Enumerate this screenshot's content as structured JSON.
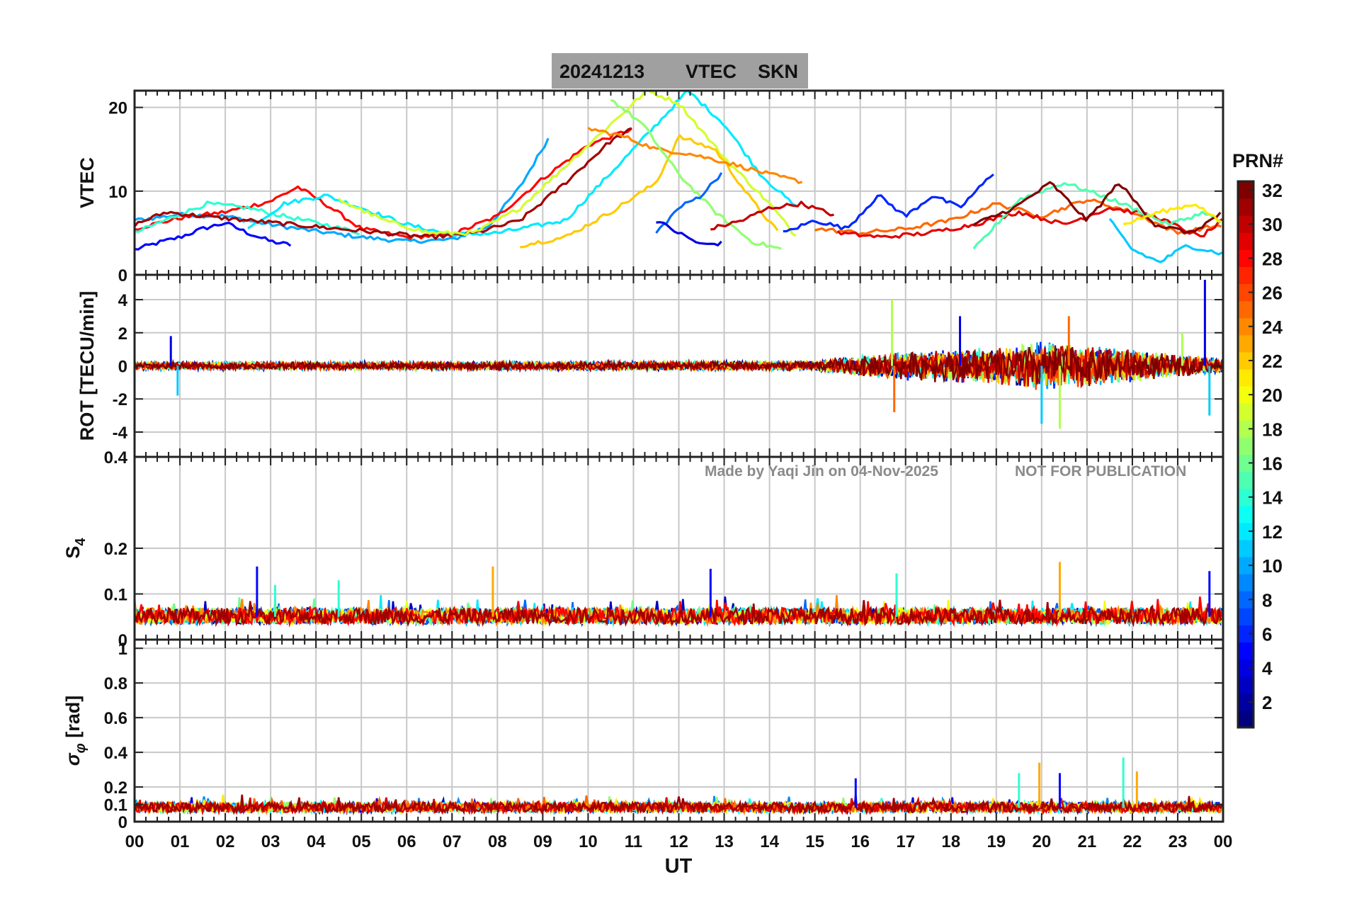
{
  "title": {
    "date": "20241213",
    "quantity": "VTEC",
    "station": "SKN"
  },
  "watermark": {
    "author": "Made by Yaqi Jin on 04-Nov-2025",
    "notice": "NOT FOR PUBLICATION"
  },
  "colorbar": {
    "label": "PRN#",
    "ticks": [
      "2",
      "4",
      "6",
      "8",
      "10",
      "12",
      "14",
      "16",
      "18",
      "20",
      "22",
      "24",
      "26",
      "28",
      "30",
      "32"
    ],
    "min": 1,
    "max": 32,
    "colormap": "jet"
  },
  "colors": {
    "title_box": "#a0a0a0",
    "grid": "#c8c8c8",
    "axes": "#222222",
    "watermark": "#8a8a8a"
  },
  "chart_data": [
    {
      "type": "line",
      "panel": "vtec",
      "ylabel": "VTEC",
      "ylim": [
        0,
        22
      ],
      "yticks": [
        "0",
        "10",
        "20"
      ],
      "yticks_values": [
        0,
        10,
        20
      ],
      "xlim": [
        0,
        24
      ],
      "grid": true,
      "series": [
        {
          "prn": 5,
          "x": [
            0,
            0.5,
            1,
            1.5,
            2,
            2.5,
            3,
            3.5
          ],
          "y": [
            3.0,
            3.8,
            4.5,
            5.5,
            6.2,
            5.0,
            4.0,
            3.5
          ]
        },
        {
          "prn": 10,
          "x": [
            0,
            1,
            2,
            3,
            4,
            5,
            6,
            7,
            7.8,
            8.5,
            9.2
          ],
          "y": [
            6.5,
            7.2,
            7.0,
            6.0,
            5.2,
            4.5,
            4.0,
            4.2,
            5.8,
            10.5,
            17.0
          ]
        },
        {
          "prn": 28,
          "x": [
            0,
            1,
            2,
            3,
            3.6,
            4.2,
            5,
            6,
            7,
            8,
            9,
            10,
            11
          ],
          "y": [
            5.5,
            6.8,
            7.5,
            8.8,
            10.5,
            8.5,
            5.5,
            4.5,
            4.8,
            7.0,
            11.5,
            15.5,
            17.5
          ]
        },
        {
          "prn": 14,
          "x": [
            0,
            0.8,
            1.6,
            2.5,
            3.3,
            4.2,
            5
          ],
          "y": [
            5.0,
            6.8,
            8.5,
            8.0,
            7.0,
            6.0,
            5.0
          ]
        },
        {
          "prn": 12,
          "x": [
            2.5,
            3.3,
            4.2,
            5,
            6,
            7,
            8,
            9.5,
            11,
            12.2,
            13,
            13.8,
            14.6
          ],
          "y": [
            5.5,
            8.5,
            9.5,
            8.0,
            6.0,
            4.8,
            5.0,
            6.5,
            15.0,
            22.0,
            18.0,
            12.0,
            8.0
          ]
        },
        {
          "prn": 31,
          "x": [
            0,
            0.7,
            1.5,
            2.5,
            3.5,
            4.5,
            5.5,
            6.5,
            7.5,
            8.5,
            9.5,
            10.5,
            11
          ],
          "y": [
            6.0,
            7.5,
            7.0,
            6.5,
            6.0,
            5.5,
            5.0,
            4.5,
            5.0,
            6.5,
            11.0,
            16.0,
            17.5
          ]
        },
        {
          "prn": 19,
          "x": [
            4.5,
            5.5,
            6.5,
            7.5,
            8.5,
            9.5,
            10.5,
            11.3,
            12,
            13,
            14,
            14.6
          ],
          "y": [
            9.0,
            6.5,
            5.0,
            5.0,
            8.0,
            13.0,
            18.0,
            22.0,
            20.5,
            14.0,
            8.5,
            4.5
          ]
        },
        {
          "prn": 22,
          "x": [
            8.5,
            9.5,
            10.5,
            11.5,
            12,
            12.8,
            13.6,
            14.2
          ],
          "y": [
            3.5,
            4.5,
            7.5,
            11.0,
            16.5,
            15.0,
            9.0,
            5.0
          ]
        },
        {
          "prn": 24,
          "x": [
            10,
            10.8,
            11.5,
            12.2,
            13,
            14,
            14.8
          ],
          "y": [
            17.5,
            16.5,
            15.0,
            14.5,
            13.5,
            12.0,
            11.0
          ]
        },
        {
          "prn": 17,
          "x": [
            10.5,
            11.2,
            12,
            12.8,
            13.6,
            14.3
          ],
          "y": [
            21.0,
            18.0,
            12.0,
            7.5,
            4.0,
            3.0
          ]
        },
        {
          "prn": 8,
          "x": [
            11.5,
            12,
            12.5,
            13
          ],
          "y": [
            5.0,
            8.0,
            9.5,
            12.5
          ]
        },
        {
          "prn": 4,
          "x": [
            11.5,
            12,
            12.5,
            13
          ],
          "y": [
            6.5,
            5.0,
            3.6,
            3.8
          ]
        },
        {
          "prn": 30,
          "x": [
            12.7,
            13.4,
            14,
            14.7,
            15.5
          ],
          "y": [
            5.5,
            6.5,
            8.0,
            8.5,
            7.0
          ]
        },
        {
          "prn": 6,
          "x": [
            14.3,
            15,
            15.7,
            16.4,
            17,
            17.6,
            18.2,
            19
          ],
          "y": [
            5.0,
            6.5,
            5.5,
            9.5,
            7.0,
            9.5,
            8.0,
            12.5
          ]
        },
        {
          "prn": 25,
          "x": [
            15,
            16,
            17,
            18,
            19,
            20,
            21,
            22,
            23,
            24
          ],
          "y": [
            5.5,
            5.0,
            5.5,
            6.5,
            8.5,
            7.0,
            9.0,
            7.5,
            5.0,
            6.0
          ]
        },
        {
          "prn": 29,
          "x": [
            15.5,
            16.5,
            17.5,
            18.5,
            19.5,
            20.5,
            21.5,
            22.5,
            23.5,
            24
          ],
          "y": [
            5.0,
            4.5,
            5.0,
            6.0,
            7.5,
            6.0,
            8.0,
            7.0,
            4.5,
            6.5
          ]
        },
        {
          "prn": 15,
          "x": [
            18.5,
            19.5,
            20.5,
            21.3,
            22,
            22.8,
            23.6,
            24
          ],
          "y": [
            3.0,
            9.0,
            11.0,
            9.5,
            8.0,
            6.0,
            7.5,
            6.0
          ]
        },
        {
          "prn": 32,
          "x": [
            18.5,
            19.4,
            20.2,
            21,
            21.7,
            22.5,
            23.3,
            24
          ],
          "y": [
            6.0,
            8.0,
            11.0,
            6.5,
            11.0,
            6.0,
            5.0,
            7.5
          ]
        },
        {
          "prn": 11,
          "x": [
            21.5,
            22,
            22.6,
            23.2,
            24
          ],
          "y": [
            6.5,
            3.0,
            1.5,
            3.5,
            2.5
          ]
        },
        {
          "prn": 21,
          "x": [
            21.8,
            22.6,
            23.4,
            24
          ],
          "y": [
            6.0,
            7.5,
            8.5,
            6.0
          ]
        }
      ]
    },
    {
      "type": "line",
      "panel": "rot",
      "ylabel": "ROT [TECU/min]",
      "ylim": [
        -5.5,
        5.5
      ],
      "yticks": [
        "-4",
        "-2",
        "0",
        "2",
        "4"
      ],
      "yticks_values": [
        -4,
        -2,
        0,
        2,
        4
      ],
      "xlim": [
        0,
        24
      ],
      "grid": true,
      "noise_profile": {
        "x": [
          0,
          15,
          16,
          17,
          18,
          19,
          20,
          21,
          22,
          23,
          24
        ],
        "amplitude": [
          0.4,
          0.5,
          1.2,
          1.5,
          1.8,
          2.0,
          2.6,
          2.2,
          1.8,
          1.2,
          0.8
        ]
      },
      "spikes": [
        {
          "x": 0.8,
          "y": 1.8
        },
        {
          "x": 0.95,
          "y": -1.8
        },
        {
          "x": 16.7,
          "y": 4.0
        },
        {
          "x": 16.75,
          "y": -2.8
        },
        {
          "x": 18.2,
          "y": 3.0
        },
        {
          "x": 20.0,
          "y": -3.5
        },
        {
          "x": 20.4,
          "y": -3.8
        },
        {
          "x": 20.6,
          "y": 3.0
        },
        {
          "x": 23.6,
          "y": 5.2
        },
        {
          "x": 23.7,
          "y": -3.0
        },
        {
          "x": 23.1,
          "y": 2.0
        }
      ],
      "series_prns": [
        2,
        6,
        10,
        14,
        18,
        22,
        26,
        30,
        32
      ]
    },
    {
      "type": "line",
      "panel": "s4",
      "ylabel": "S4",
      "ylabel_main": "S",
      "ylabel_sub": "4",
      "ylim": [
        0,
        0.4
      ],
      "yticks": [
        "0",
        "0.1",
        "0.2",
        "0.4"
      ],
      "yticks_values": [
        0,
        0.1,
        0.2,
        0.4
      ],
      "xlim": [
        0,
        24
      ],
      "grid": true,
      "baseline": 0.05,
      "spikes": [
        {
          "x": 2.7,
          "y": 0.16
        },
        {
          "x": 4.5,
          "y": 0.13
        },
        {
          "x": 7.9,
          "y": 0.16
        },
        {
          "x": 12.7,
          "y": 0.155
        },
        {
          "x": 16.8,
          "y": 0.145
        },
        {
          "x": 20.4,
          "y": 0.17
        },
        {
          "x": 23.7,
          "y": 0.15
        },
        {
          "x": 3.1,
          "y": 0.12
        }
      ],
      "series_prns": [
        3,
        8,
        12,
        16,
        20,
        24,
        28,
        31
      ]
    },
    {
      "type": "line",
      "panel": "sigma_phi",
      "ylabel": "σφ [rad]",
      "ylabel_main": "σ",
      "ylabel_sub": "φ",
      "ylabel_unit": "[rad]",
      "ylim": [
        0,
        1.05
      ],
      "yticks": [
        "0",
        "0.1",
        "0.2",
        "0.4",
        "0.6",
        "0.8",
        "1"
      ],
      "yticks_values": [
        0,
        0.1,
        0.2,
        0.4,
        0.6,
        0.8,
        1.0
      ],
      "xlim": [
        0,
        24
      ],
      "xlabel": "UT",
      "xticks": [
        "00",
        "01",
        "02",
        "03",
        "04",
        "05",
        "06",
        "07",
        "08",
        "09",
        "10",
        "11",
        "12",
        "13",
        "14",
        "15",
        "16",
        "17",
        "18",
        "19",
        "20",
        "21",
        "22",
        "23",
        "00"
      ],
      "grid": true,
      "baseline": 0.08,
      "spikes": [
        {
          "x": 15.9,
          "y": 0.25
        },
        {
          "x": 19.5,
          "y": 0.28
        },
        {
          "x": 19.95,
          "y": 0.34
        },
        {
          "x": 20.4,
          "y": 0.28
        },
        {
          "x": 21.8,
          "y": 0.37
        },
        {
          "x": 22.1,
          "y": 0.29
        }
      ],
      "series_prns": [
        4,
        9,
        13,
        17,
        21,
        25,
        29,
        31
      ]
    }
  ]
}
